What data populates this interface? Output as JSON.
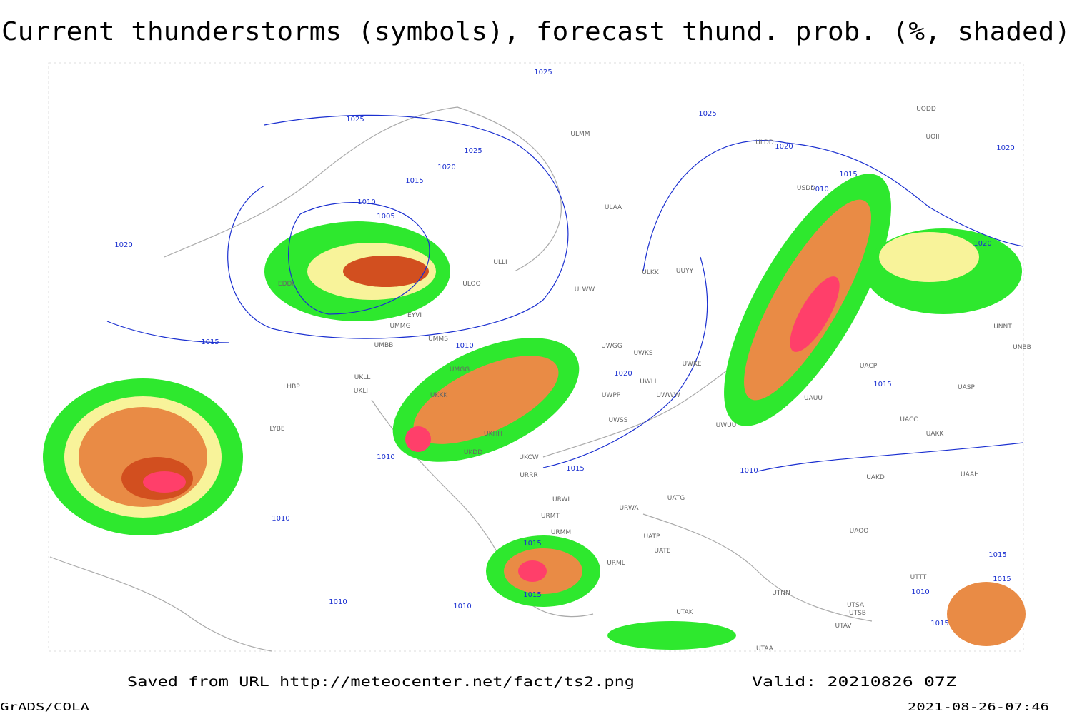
{
  "title": "Current thunderstorms (symbols), forecast thund. prob. (%, shaded)",
  "footer": {
    "saved": "Saved from URL http://meteocenter.net/fact/ts2.png",
    "valid": "Valid: 20210826 07Z",
    "software": "GrADS/COLA",
    "timestamp": "2021-08-26-07:46"
  },
  "isobar_labels": [
    1025,
    1025,
    1025,
    1025,
    1020,
    1020,
    1020,
    1020,
    1020,
    1020,
    1015,
    1015,
    1015,
    1015,
    1015,
    1015,
    1015,
    1015,
    1015,
    1015,
    1010,
    1010,
    1010,
    1010,
    1010,
    1010,
    1010,
    1010,
    1010,
    1005
  ],
  "station_labels": [
    "ULMM",
    "ULAA",
    "ULLI",
    "ULOO",
    "ULWW",
    "ULKK",
    "UUYY",
    "USDD",
    "ULDD",
    "UODD",
    "UOII",
    "EYVI",
    "UMMG",
    "UMMS",
    "UMBB",
    "UMGG",
    "UKLL",
    "UKLI",
    "LHBP",
    "UKKK",
    "UKHH",
    "UKDD",
    "UKCW",
    "URRR",
    "URWI",
    "URWA",
    "UATG",
    "UATP",
    "UATE",
    "URMT",
    "URMM",
    "URML",
    "UWGG",
    "UWKS",
    "UWKE",
    "UWLL",
    "UWWW",
    "UWPP",
    "UWSS",
    "UWUU",
    "UAKD",
    "UACC",
    "UAKK",
    "UASP",
    "UAOO",
    "UACP",
    "UAUU",
    "UNNT",
    "UNBB",
    "UAAH",
    "UTAA",
    "UTAK",
    "UTSA",
    "UTSB",
    "UTAV",
    "UTTT",
    "UTNN",
    "LYBE",
    "EDDI"
  ]
}
